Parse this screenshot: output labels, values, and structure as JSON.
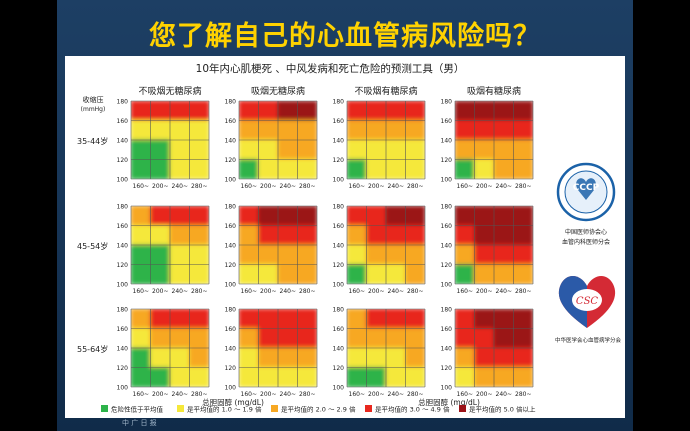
{
  "slide": {
    "title": "您了解自己的心血管病风险吗？",
    "footer": "中 广 日 报"
  },
  "logos": {
    "cccp_text": "CCCP",
    "cccp_caption_1": "中国医师协会心",
    "cccp_caption_2": "血管内科医师分会",
    "csc_text": "CSC",
    "csc_caption": "中华医学会心血管病学分会"
  },
  "colors": {
    "green": "#2db34a",
    "yellow": "#f5e83a",
    "orange": "#f7a823",
    "red": "#e8281e",
    "darkred": "#9b1218"
  },
  "chart_data": {
    "type": "heatmap",
    "title": "10年内心肌梗死 、中风发病和死亡危险的预测工具（男）",
    "ylabel": "收缩压",
    "ylabel_unit": "(mmHg)",
    "xlabel": "总胆固醇 (mg/dL)",
    "column_headers": [
      "不吸烟无糖尿病",
      "吸烟无糖尿病",
      "不吸烟有糖尿病",
      "吸烟有糖尿病"
    ],
    "row_headers": [
      "35-44岁",
      "45-54岁",
      "55-64岁"
    ],
    "x_ticks": [
      "160~",
      "200~",
      "240~",
      "280~"
    ],
    "y_ticks": [
      "180",
      "160",
      "140",
      "120",
      "100"
    ],
    "legend": [
      {
        "level": 0,
        "label": "危险性低于平均值"
      },
      {
        "level": 1,
        "label": "是平均值的 1.0 ～ 1.9 倍"
      },
      {
        "level": 2,
        "label": "是平均值的 2.0 ～ 2.9 倍"
      },
      {
        "level": 3,
        "label": "是平均值的 3.0 ～ 4.9 倍"
      },
      {
        "level": 4,
        "label": "是平均值的 5.0 倍以上"
      }
    ],
    "grids": [
      [
        [
          [
            3,
            3,
            3,
            3
          ],
          [
            1,
            1,
            1,
            1
          ],
          [
            0,
            0,
            1,
            1
          ],
          [
            0,
            0,
            1,
            1
          ]
        ],
        [
          [
            3,
            3,
            4,
            4
          ],
          [
            2,
            2,
            2,
            2
          ],
          [
            1,
            1,
            2,
            2
          ],
          [
            0,
            1,
            1,
            1
          ]
        ],
        [
          [
            3,
            3,
            3,
            3
          ],
          [
            2,
            2,
            2,
            2
          ],
          [
            1,
            1,
            1,
            1
          ],
          [
            0,
            1,
            1,
            1
          ]
        ],
        [
          [
            4,
            4,
            4,
            4
          ],
          [
            3,
            3,
            3,
            3
          ],
          [
            2,
            2,
            2,
            2
          ],
          [
            0,
            1,
            2,
            2
          ]
        ]
      ],
      [
        [
          [
            2,
            3,
            3,
            3
          ],
          [
            1,
            1,
            2,
            2
          ],
          [
            0,
            0,
            1,
            1
          ],
          [
            0,
            0,
            1,
            1
          ]
        ],
        [
          [
            3,
            4,
            4,
            4
          ],
          [
            2,
            3,
            3,
            3
          ],
          [
            2,
            2,
            2,
            2
          ],
          [
            1,
            1,
            2,
            2
          ]
        ],
        [
          [
            3,
            3,
            4,
            4
          ],
          [
            2,
            3,
            3,
            3
          ],
          [
            1,
            2,
            2,
            2
          ],
          [
            0,
            1,
            1,
            2
          ]
        ],
        [
          [
            4,
            4,
            4,
            4
          ],
          [
            3,
            4,
            4,
            4
          ],
          [
            2,
            3,
            3,
            3
          ],
          [
            0,
            2,
            2,
            2
          ]
        ]
      ],
      [
        [
          [
            2,
            3,
            3,
            3
          ],
          [
            1,
            2,
            2,
            2
          ],
          [
            0,
            1,
            1,
            2
          ],
          [
            0,
            0,
            1,
            1
          ]
        ],
        [
          [
            3,
            3,
            3,
            3
          ],
          [
            2,
            3,
            3,
            3
          ],
          [
            1,
            2,
            2,
            2
          ],
          [
            1,
            1,
            1,
            1
          ]
        ],
        [
          [
            2,
            3,
            3,
            3
          ],
          [
            2,
            2,
            2,
            2
          ],
          [
            1,
            1,
            1,
            2
          ],
          [
            0,
            0,
            1,
            1
          ]
        ],
        [
          [
            3,
            4,
            4,
            4
          ],
          [
            3,
            3,
            4,
            4
          ],
          [
            2,
            3,
            3,
            3
          ],
          [
            1,
            2,
            2,
            2
          ]
        ]
      ]
    ]
  }
}
